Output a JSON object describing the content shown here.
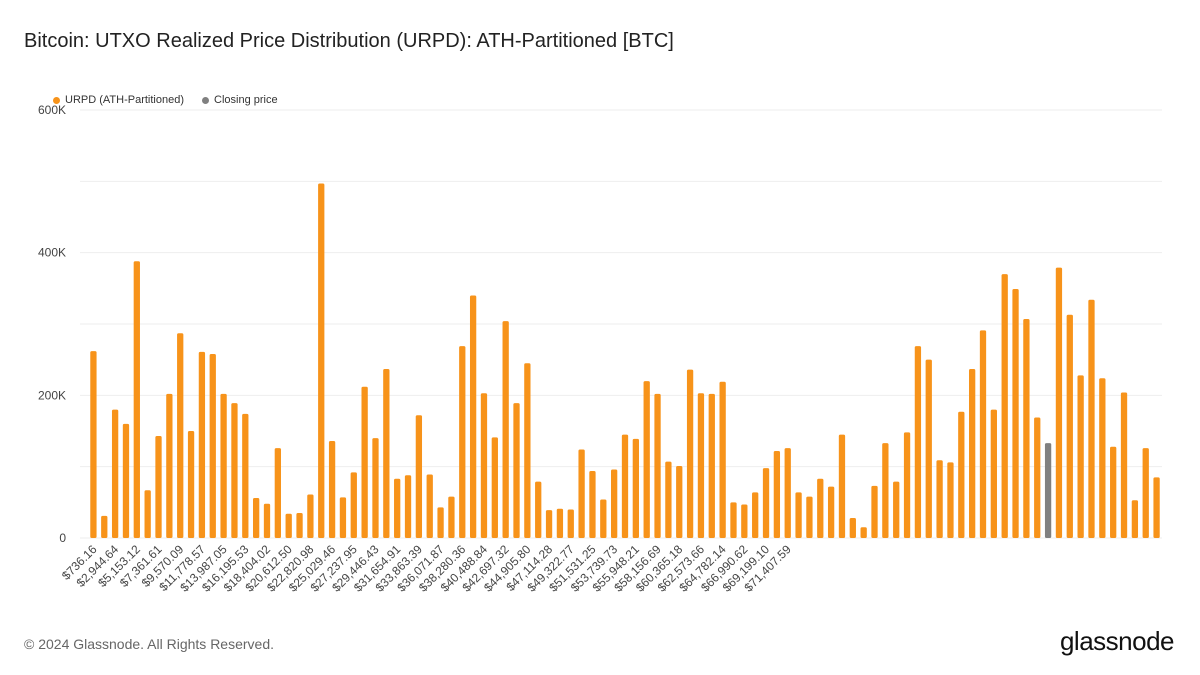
{
  "chart_data": {
    "type": "bar",
    "title": "Bitcoin: UTXO Realized Price Distribution (URPD): ATH-Partitioned [BTC]",
    "legend": [
      {
        "name": "URPD (ATH-Partitioned)",
        "color": "#f7931a"
      },
      {
        "name": "Closing price",
        "color": "#808080"
      }
    ],
    "legend_placement": "top-left",
    "ylim": [
      0,
      600000
    ],
    "yticks": [
      {
        "value": 0,
        "label": "0"
      },
      {
        "value": 200000,
        "label": "200K"
      },
      {
        "value": 400000,
        "label": "400K"
      },
      {
        "value": 600000,
        "label": "600K"
      }
    ],
    "grid": true,
    "xtick_labels": [
      "$736.16",
      "$2,944.64",
      "$5,153.12",
      "$7,361.61",
      "$9,570.09",
      "$11,778.57",
      "$13,987.05",
      "$16,195.53",
      "$18,404.02",
      "$20,612.50",
      "$22,820.98",
      "$25,029.46",
      "$27,237.95",
      "$29,446.43",
      "$31,654.91",
      "$33,863.39",
      "$36,071.87",
      "$38,280.36",
      "$40,488.84",
      "$42,697.32",
      "$44,905.80",
      "$47,114.28",
      "$49,322.77",
      "$51,531.25",
      "$53,739.73",
      "$55,948.21",
      "$58,156.69",
      "$60,365.18",
      "$62,573.66",
      "$64,782.14",
      "$66,990.62",
      "$69,199.10",
      "$71,407.59"
    ],
    "tick_every": 2,
    "closing_price_index": 88,
    "values": [
      262000,
      31000,
      180000,
      160000,
      388000,
      67000,
      143000,
      202000,
      287000,
      150000,
      261000,
      258000,
      202000,
      189000,
      174000,
      56000,
      48000,
      126000,
      34000,
      35000,
      61000,
      497000,
      136000,
      57000,
      92000,
      212000,
      140000,
      237000,
      83000,
      88000,
      172000,
      89000,
      43000,
      58000,
      269000,
      340000,
      203000,
      141000,
      304000,
      189000,
      245000,
      79000,
      39000,
      41000,
      40000,
      124000,
      94000,
      54000,
      96000,
      145000,
      139000,
      220000,
      202000,
      107000,
      101000,
      236000,
      203000,
      202000,
      219000,
      50000,
      47000,
      64000,
      98000,
      122000,
      126000,
      64000,
      58000,
      83000,
      72000,
      145000,
      28000,
      15000,
      73000,
      133000,
      79000,
      148000,
      269000,
      250000,
      109000,
      106000,
      177000,
      237000,
      291000,
      180000,
      370000,
      349000,
      307000,
      169000,
      133000,
      379000,
      313000,
      228000,
      334000,
      224000,
      128000,
      204000,
      53000,
      126000,
      85000
    ]
  },
  "footer": {
    "copyright": "© 2024 Glassnode. All Rights Reserved.",
    "brand": "glassnode"
  }
}
